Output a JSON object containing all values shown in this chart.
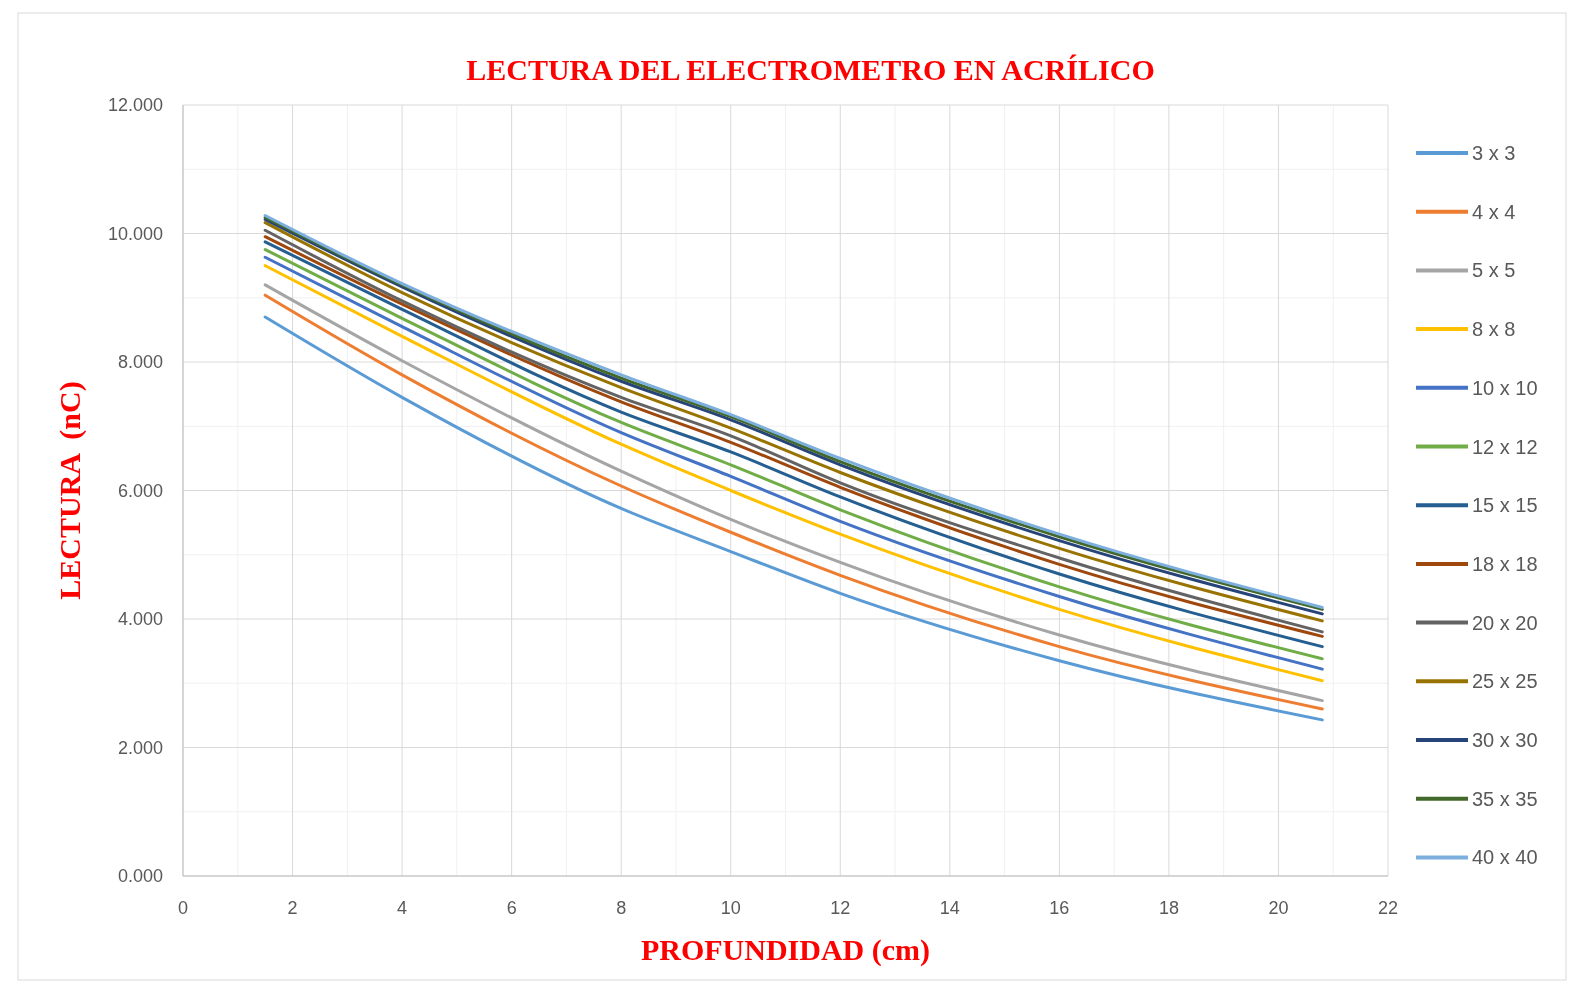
{
  "chart_data": {
    "type": "line",
    "title": "LECTURA DEL ELECTROMETRO EN ACRÍLICO",
    "xlabel": "PROFUNDIDAD (cm)",
    "ylabel": "LECTURA  (nC)",
    "x": [
      1.5,
      4,
      8,
      10,
      12,
      16,
      20.8
    ],
    "xlim": [
      0,
      22
    ],
    "xticks": [
      0,
      2,
      4,
      6,
      8,
      10,
      12,
      14,
      16,
      18,
      20,
      22
    ],
    "ylim": [
      0,
      12
    ],
    "yticks": [
      {
        "value": 0,
        "label": "0.000"
      },
      {
        "value": 2,
        "label": "2.000"
      },
      {
        "value": 4,
        "label": "4.000"
      },
      {
        "value": 6,
        "label": "6.000"
      },
      {
        "value": 8,
        "label": "8.000"
      },
      {
        "value": 10,
        "label": "10.000"
      },
      {
        "value": 12,
        "label": "12.000"
      }
    ],
    "grid": true,
    "legend": "right",
    "marker": "none",
    "line_style": "solid",
    "series": [
      {
        "name": "3 x 3",
        "color": "#5b9bd5",
        "values": [
          8.7,
          7.45,
          5.72,
          5.05,
          4.4,
          3.35,
          2.43
        ]
      },
      {
        "name": "4 x 4",
        "color": "#ed7d31",
        "values": [
          9.04,
          7.8,
          6.07,
          5.35,
          4.68,
          3.57,
          2.6
        ]
      },
      {
        "name": "5 x 5",
        "color": "#a5a5a5",
        "values": [
          9.2,
          8.02,
          6.3,
          5.55,
          4.88,
          3.75,
          2.73
        ]
      },
      {
        "name": "8 x 8",
        "color": "#ffc000",
        "values": [
          9.5,
          8.4,
          6.72,
          6.0,
          5.32,
          4.15,
          3.04
        ]
      },
      {
        "name": "10 x 10",
        "color": "#4472c4",
        "values": [
          9.63,
          8.55,
          6.9,
          6.22,
          5.52,
          4.35,
          3.22
        ]
      },
      {
        "name": "12 x 12",
        "color": "#70ad47",
        "values": [
          9.75,
          8.68,
          7.06,
          6.4,
          5.7,
          4.5,
          3.38
        ]
      },
      {
        "name": "15 x 15",
        "color": "#255e91",
        "values": [
          9.87,
          8.82,
          7.22,
          6.6,
          5.9,
          4.7,
          3.57
        ]
      },
      {
        "name": "18 x 18",
        "color": "#9e480e",
        "values": [
          9.95,
          8.9,
          7.38,
          6.75,
          6.05,
          4.85,
          3.73
        ]
      },
      {
        "name": "20 x 20",
        "color": "#636363",
        "values": [
          10.05,
          8.95,
          7.45,
          6.85,
          6.12,
          4.95,
          3.8
        ]
      },
      {
        "name": "25 x 25",
        "color": "#997300",
        "values": [
          10.17,
          9.08,
          7.6,
          6.97,
          6.28,
          5.1,
          3.97
        ]
      },
      {
        "name": "30 x 30",
        "color": "#264478",
        "values": [
          10.22,
          9.17,
          7.7,
          7.1,
          6.4,
          5.22,
          4.08
        ]
      },
      {
        "name": "35 x 35",
        "color": "#43682b",
        "values": [
          10.25,
          9.2,
          7.75,
          7.15,
          6.45,
          5.28,
          4.15
        ]
      },
      {
        "name": "40 x 40",
        "color": "#7cafdd",
        "values": [
          10.28,
          9.22,
          7.8,
          7.18,
          6.5,
          5.32,
          4.18
        ]
      }
    ]
  }
}
